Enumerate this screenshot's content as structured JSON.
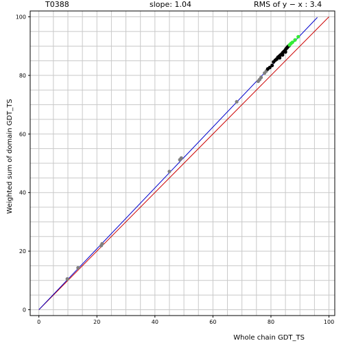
{
  "header": {
    "target_id": "T0388",
    "slope_text": "slope: 1.04",
    "rms_text": "RMS of  y − x : 3.4"
  },
  "chart_data": {
    "type": "scatter",
    "title": "",
    "xlabel": "Whole chain GDT_TS",
    "ylabel": "Weighted sum of domain GDT_TS",
    "xlim": [
      -3,
      102
    ],
    "ylim": [
      -2,
      102
    ],
    "x_ticks": [
      0,
      20,
      40,
      60,
      80,
      100
    ],
    "y_ticks": [
      0,
      20,
      40,
      60,
      80,
      100
    ],
    "x_tick_labels": [
      "0",
      "20",
      "40",
      "60",
      "80",
      "100"
    ],
    "y_tick_labels": [
      "0",
      "20",
      "40",
      "60",
      "80",
      "100"
    ],
    "grid": true,
    "grid_step": 5,
    "lines": [
      {
        "kind": "identity y=x",
        "color": "#cc0000",
        "x": [
          0,
          100
        ],
        "y": [
          0,
          100
        ]
      },
      {
        "kind": "fit slope 1.04",
        "color": "#0000cc",
        "x": [
          0,
          96
        ],
        "y": [
          0,
          99.8
        ]
      }
    ],
    "series": [
      {
        "color": "#808080",
        "points": [
          [
            9.8,
            10.5
          ],
          [
            13.5,
            14.3
          ],
          [
            21.5,
            21.9
          ],
          [
            21.8,
            22.5
          ],
          [
            45.0,
            47.2
          ],
          [
            48.6,
            51.2
          ],
          [
            49.1,
            51.8
          ],
          [
            68.2,
            71.0
          ],
          [
            75.6,
            78.0
          ],
          [
            76.1,
            78.6
          ],
          [
            76.6,
            79.3
          ],
          [
            77.8,
            80.8
          ],
          [
            78.4,
            81.5
          ]
        ]
      },
      {
        "color": "#000000",
        "points": [
          [
            78.9,
            82.2
          ],
          [
            79.6,
            82.7
          ],
          [
            80.4,
            83.4
          ],
          [
            80.9,
            84.6
          ],
          [
            81.5,
            85.2
          ],
          [
            82.0,
            85.6
          ],
          [
            82.4,
            86.2
          ],
          [
            82.8,
            86.5
          ],
          [
            83.2,
            86.9
          ],
          [
            83.7,
            87.3
          ],
          [
            84.1,
            87.8
          ],
          [
            84.5,
            88.2
          ],
          [
            84.9,
            88.6
          ],
          [
            85.2,
            89.1
          ],
          [
            85.6,
            89.5
          ],
          [
            85.9,
            89.9
          ],
          [
            86.3,
            90.2
          ],
          [
            83.0,
            86.0
          ],
          [
            84.0,
            87.0
          ],
          [
            85.0,
            88.0
          ]
        ]
      },
      {
        "color": "#33ee33",
        "points": [
          [
            86.4,
            90.4
          ],
          [
            86.9,
            90.9
          ],
          [
            87.4,
            91.3
          ],
          [
            88.3,
            92.1
          ],
          [
            89.4,
            93.2
          ]
        ]
      }
    ]
  }
}
